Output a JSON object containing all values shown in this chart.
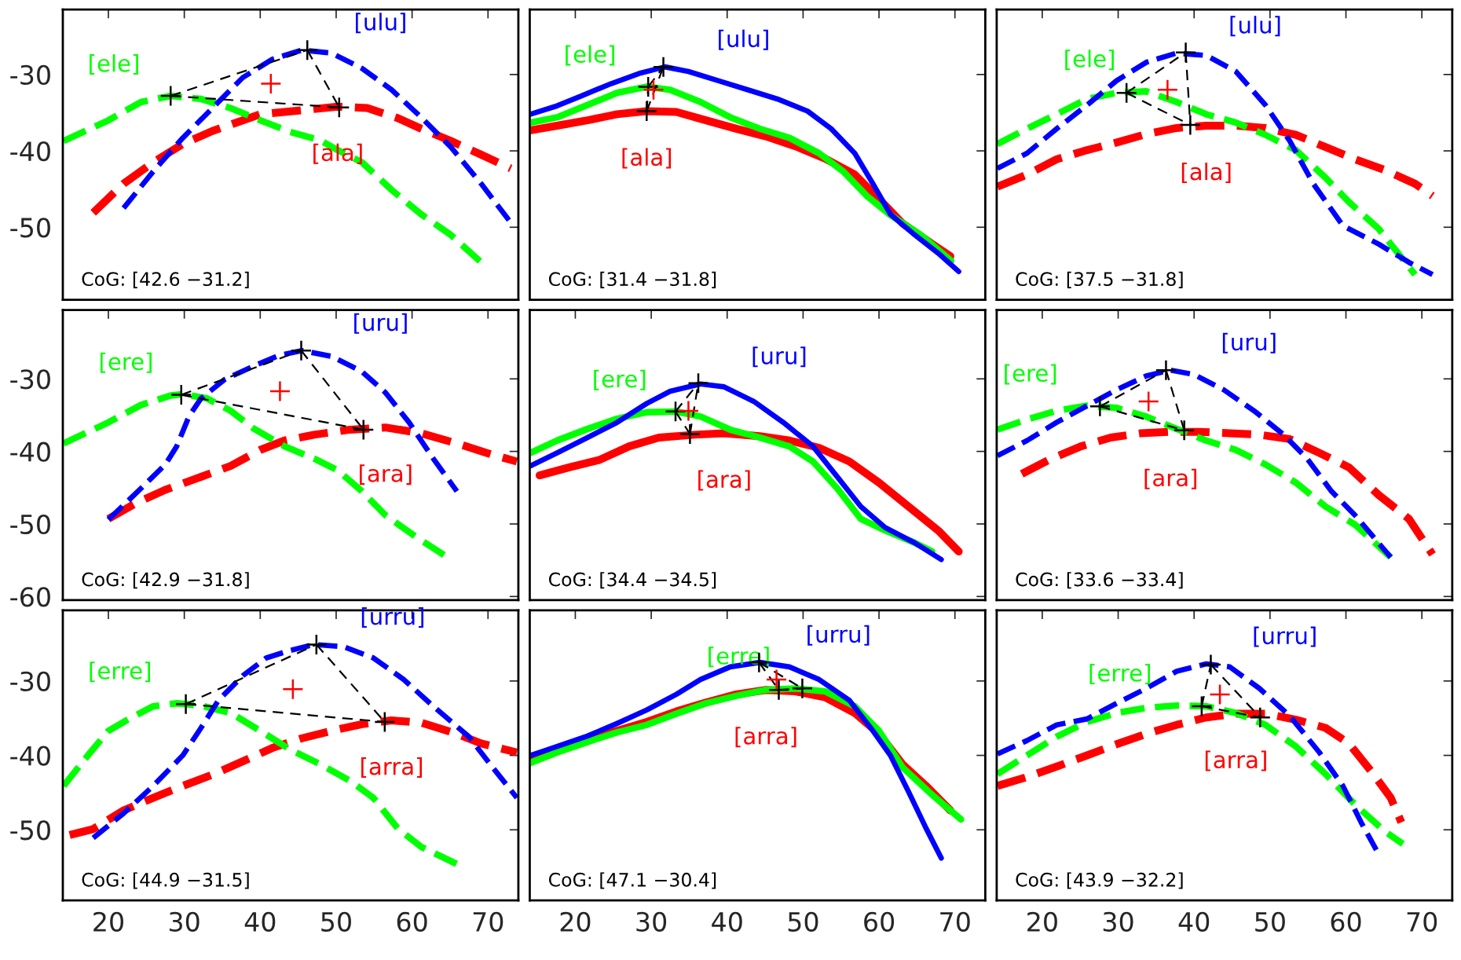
{
  "chart_data": [
    {
      "type": "line",
      "line_style": "dashed",
      "xlim": [
        14,
        74
      ],
      "ylim": [
        -59.5,
        -21.5
      ],
      "xticks": [
        20,
        30,
        40,
        50,
        60,
        70
      ],
      "yticks": [
        -50,
        -40,
        -30
      ],
      "tick_labels": "y",
      "series": [
        {
          "name": "[ala]",
          "color": "#ff0000",
          "x": [
            18,
            22,
            25.9,
            29.8,
            33.7,
            37.7,
            40,
            43.2,
            46.3,
            50.2,
            54.1,
            58.1,
            61.2,
            65.1,
            69.1,
            73
          ],
          "values": [
            -48.1,
            -44.3,
            -41.5,
            -39.1,
            -37.4,
            -36,
            -35.2,
            -34.9,
            -34.6,
            -34.2,
            -34.4,
            -35.7,
            -37.1,
            -38.7,
            -40.5,
            -42.3
          ]
        },
        {
          "name": "[ele]",
          "color": "#00ff00",
          "x": [
            14.1,
            20,
            24.3,
            28.2,
            32.2,
            36.1,
            40,
            43.9,
            47.9,
            50.2,
            53.4,
            57.3,
            61.2,
            65.1,
            69.1
          ],
          "values": [
            -38.7,
            -36,
            -33.6,
            -32.8,
            -33.2,
            -34.4,
            -36,
            -37.5,
            -38.6,
            -39.9,
            -41.5,
            -45.1,
            -48.3,
            -51,
            -54.6
          ]
        },
        {
          "name": "[ulu]",
          "color": "#0000ff",
          "x": [
            22,
            25.9,
            29.8,
            33.7,
            37.7,
            41.6,
            45.5,
            49.4,
            53.4,
            57.3,
            61.2,
            65.1,
            69.1,
            73
          ],
          "values": [
            -47.5,
            -42.7,
            -38.3,
            -34.4,
            -30.4,
            -28,
            -26.8,
            -27.2,
            -29.2,
            -32,
            -35.6,
            -39.5,
            -44.3,
            -49.4
          ]
        },
        {
          "type": "line",
          "color": "#000000",
          "line_style": "dashed",
          "x": [
            28.2,
            46.2
          ],
          "values": [
            -32.8,
            -26.8
          ]
        },
        {
          "type": "line",
          "color": "#000000",
          "line_style": "dashed",
          "x": [
            46.2,
            50.4
          ],
          "values": [
            -26.8,
            -34.3
          ]
        },
        {
          "type": "line",
          "color": "#000000",
          "line_style": "dashed",
          "x": [
            28.2,
            50.4
          ],
          "values": [
            -32.8,
            -34.3
          ]
        },
        {
          "type": "scatter",
          "color": "#000000",
          "marker": "cross",
          "x": [
            28.2,
            46.2,
            50.4
          ],
          "values": [
            -32.8,
            -26.8,
            -34.3
          ]
        },
        {
          "type": "scatter",
          "color": "#ff0000",
          "marker": "cross",
          "x": [
            41.4
          ],
          "values": [
            -31.2
          ]
        }
      ],
      "annotations": [
        "CoG: [42.6 −31.2]"
      ]
    },
    {
      "type": "line",
      "line_style": "solid",
      "xlim": [
        14,
        74
      ],
      "ylim": [
        -59.5,
        -21.5
      ],
      "xticks": [
        20,
        30,
        40,
        50,
        60,
        70
      ],
      "yticks": [
        -50,
        -40,
        -30
      ],
      "tick_labels": false,
      "series": [
        {
          "name": "[ala]",
          "color": "#ff0000",
          "x": [
            14.1,
            17.6,
            21.6,
            25.5,
            29.4,
            33.3,
            37.2,
            41.2,
            45.1,
            49,
            52.9,
            56.8,
            60,
            63.1,
            67,
            69.4
          ],
          "values": [
            -37.3,
            -36.7,
            -36,
            -35.2,
            -34.8,
            -34.9,
            -36,
            -37.1,
            -38.1,
            -39.4,
            -41,
            -43.1,
            -46.3,
            -49.5,
            -52.2,
            -53.8
          ]
        },
        {
          "name": "[ele]",
          "color": "#00ff00",
          "x": [
            14.1,
            17.6,
            21.6,
            25.5,
            29.4,
            32.5,
            36.5,
            40.4,
            44.3,
            48.2,
            52.1,
            55.3,
            58.4,
            61.5,
            65.5,
            69.5
          ],
          "values": [
            -36.3,
            -35.6,
            -34,
            -32.4,
            -31.6,
            -32,
            -33.6,
            -35.6,
            -37.1,
            -38.3,
            -40.3,
            -42.7,
            -45.9,
            -48.4,
            -51,
            -54.4
          ]
        },
        {
          "name": "[ulu]",
          "color": "#0000ff",
          "x": [
            14.1,
            17.6,
            20.8,
            24.7,
            28.6,
            31.8,
            34.9,
            38.8,
            42.7,
            46.6,
            50.6,
            53.7,
            56.8,
            59.2,
            61.5,
            64.7,
            67.8,
            70.5
          ],
          "values": [
            -35.2,
            -34.1,
            -32.8,
            -31.2,
            -29.8,
            -29,
            -29.6,
            -30.8,
            -32,
            -33.2,
            -34.8,
            -37.1,
            -40.3,
            -44.3,
            -48.3,
            -51,
            -53.4,
            -55.8
          ]
        },
        {
          "type": "line",
          "color": "#000000",
          "line_style": "dashed",
          "x": [
            29.6,
            31.6
          ],
          "values": [
            -31.6,
            -29
          ]
        },
        {
          "type": "line",
          "color": "#000000",
          "line_style": "dashed",
          "x": [
            29.4,
            31.6
          ],
          "values": [
            -34.8,
            -29
          ]
        },
        {
          "type": "line",
          "color": "#000000",
          "line_style": "dashed",
          "x": [
            29.4,
            29.6
          ],
          "values": [
            -34.8,
            -31.6
          ]
        },
        {
          "type": "scatter",
          "color": "#000000",
          "marker": "cross",
          "x": [
            29.6,
            31.6,
            29.4
          ],
          "values": [
            -31.6,
            -29,
            -34.8
          ]
        },
        {
          "type": "scatter",
          "color": "#ff0000",
          "marker": "cross",
          "x": [
            30.3
          ],
          "values": [
            -32
          ]
        }
      ],
      "annotations": [
        "CoG: [31.4 −31.8]"
      ]
    },
    {
      "type": "line",
      "line_style": "dashed",
      "xlim": [
        14,
        74
      ],
      "ylim": [
        -59.5,
        -21.5
      ],
      "xticks": [
        20,
        30,
        40,
        50,
        60,
        70
      ],
      "yticks": [
        -50,
        -40,
        -30
      ],
      "tick_labels": false,
      "series": [
        {
          "name": "[ala]",
          "color": "#ff0000",
          "x": [
            14.1,
            18,
            21.9,
            25.9,
            29.8,
            33.7,
            37.7,
            41.6,
            45.5,
            49.4,
            53.4,
            57.3,
            61.2,
            65.1,
            69.1,
            71.4
          ],
          "values": [
            -44.7,
            -43.1,
            -41.1,
            -39.9,
            -38.9,
            -37.8,
            -37,
            -36.7,
            -36.7,
            -37,
            -37.9,
            -39.5,
            -41.1,
            -42.5,
            -44.3,
            -45.9
          ]
        },
        {
          "name": "[ele]",
          "color": "#00ff00",
          "x": [
            14.1,
            18,
            21.9,
            25.9,
            29.8,
            33.7,
            37.7,
            41.6,
            45.5,
            49.4,
            53.4,
            57.3,
            60.4,
            64.3,
            69.1
          ],
          "values": [
            -39.1,
            -37.1,
            -35.2,
            -33.2,
            -32.4,
            -32.2,
            -33.6,
            -35.2,
            -36.3,
            -37.9,
            -39.9,
            -43.5,
            -46.7,
            -50.2,
            -56.2
          ]
        },
        {
          "name": "[ulu]",
          "color": "#0000ff",
          "x": [
            14.1,
            18,
            21.9,
            25.9,
            29.8,
            33.7,
            37.7,
            41.6,
            45.5,
            49.4,
            52.6,
            55.7,
            59.6,
            64.3,
            68.3,
            71.4
          ],
          "values": [
            -42.3,
            -40.3,
            -37.1,
            -34,
            -30.8,
            -28.4,
            -27.2,
            -27.5,
            -29.6,
            -34,
            -38.7,
            -44.3,
            -49.8,
            -52.2,
            -54.6,
            -56.2
          ]
        },
        {
          "type": "line",
          "color": "#000000",
          "line_style": "dashed",
          "x": [
            31.1,
            38.9
          ],
          "values": [
            -32.4,
            -27.1
          ]
        },
        {
          "type": "line",
          "color": "#000000",
          "line_style": "dashed",
          "x": [
            38.9,
            39.5
          ],
          "values": [
            -27.1,
            -36.6
          ]
        },
        {
          "type": "line",
          "color": "#000000",
          "line_style": "dashed",
          "x": [
            31.1,
            39.5
          ],
          "values": [
            -32.4,
            -36.6
          ]
        },
        {
          "type": "scatter",
          "color": "#000000",
          "marker": "cross",
          "x": [
            31.1,
            38.9,
            39.5
          ],
          "values": [
            -32.4,
            -27.1,
            -36.6
          ]
        },
        {
          "type": "scatter",
          "color": "#ff0000",
          "marker": "cross",
          "x": [
            36.5
          ],
          "values": [
            -32
          ]
        }
      ],
      "annotations": [
        "CoG: [37.5 −31.8]"
      ]
    },
    {
      "type": "line",
      "line_style": "dashed",
      "xlim": [
        14,
        74
      ],
      "ylim": [
        -60.5,
        -20.5
      ],
      "xticks": [
        20,
        30,
        40,
        50,
        60,
        70
      ],
      "yticks": [
        -60,
        -50,
        -40,
        -30
      ],
      "tick_labels": "y",
      "series": [
        {
          "name": "[ara]",
          "color": "#ff0000",
          "x": [
            20,
            23.5,
            27.5,
            32.2,
            36.1,
            40,
            43.2,
            47.1,
            51.8,
            56.5,
            61.2,
            65.9,
            69.8,
            73.8
          ],
          "values": [
            -49.3,
            -47.2,
            -45.3,
            -43.5,
            -42,
            -39.8,
            -38.5,
            -37.7,
            -37,
            -36.7,
            -37.5,
            -38.9,
            -40.2,
            -41.4
          ]
        },
        {
          "name": "[ere]",
          "color": "#00ff00",
          "x": [
            14.1,
            20,
            24.3,
            28.2,
            29.8,
            33,
            36.1,
            39.2,
            43.2,
            47.1,
            50.2,
            53.4,
            56.5,
            60.4,
            64.7
          ],
          "values": [
            -38.9,
            -36,
            -33.6,
            -32.3,
            -32.1,
            -32.7,
            -34.4,
            -36.9,
            -39.3,
            -41,
            -42.6,
            -45.5,
            -48.8,
            -51.7,
            -54.6
          ]
        },
        {
          "name": "[uru]",
          "color": "#0000ff",
          "x": [
            20,
            24.3,
            27.5,
            29,
            30.6,
            32.2,
            35.3,
            39.2,
            42.4,
            45.5,
            49.4,
            53.4,
            56.5,
            59.6,
            62.8,
            65.9
          ],
          "values": [
            -49.4,
            -45.1,
            -41.8,
            -39.3,
            -35.2,
            -32.7,
            -30.1,
            -28.2,
            -26.8,
            -26.1,
            -26.9,
            -29,
            -31.9,
            -36,
            -41,
            -45.5
          ]
        },
        {
          "type": "line",
          "color": "#000000",
          "line_style": "dashed",
          "x": [
            29.6,
            45.4
          ],
          "values": [
            -32.2,
            -26.1
          ]
        },
        {
          "type": "line",
          "color": "#000000",
          "line_style": "dashed",
          "x": [
            45.4,
            53.6
          ],
          "values": [
            -26.1,
            -37
          ]
        },
        {
          "type": "line",
          "color": "#000000",
          "line_style": "dashed",
          "x": [
            29.6,
            53.6
          ],
          "values": [
            -32.2,
            -37
          ]
        },
        {
          "type": "scatter",
          "color": "#000000",
          "marker": "cross",
          "x": [
            29.6,
            45.4,
            53.6
          ],
          "values": [
            -32.2,
            -26.1,
            -37
          ]
        },
        {
          "type": "scatter",
          "color": "#ff0000",
          "marker": "cross",
          "x": [
            42.6
          ],
          "values": [
            -31.7
          ]
        }
      ],
      "annotations": [
        "CoG: [42.9 −31.8]"
      ]
    },
    {
      "type": "line",
      "line_style": "solid",
      "xlim": [
        14,
        74
      ],
      "ylim": [
        -60.5,
        -20.5
      ],
      "xticks": [
        20,
        30,
        40,
        50,
        60,
        70
      ],
      "yticks": [
        -60,
        -50,
        -40,
        -30
      ],
      "tick_labels": false,
      "series": [
        {
          "name": "[ara]",
          "color": "#ff0000",
          "x": [
            15.3,
            19.2,
            23.1,
            27.1,
            31,
            35.7,
            39.6,
            44.3,
            48.2,
            52.1,
            56.1,
            60,
            63.9,
            67.8,
            70.5
          ],
          "values": [
            -43.3,
            -42.2,
            -41.2,
            -39.3,
            -38.1,
            -37.7,
            -37.5,
            -37.9,
            -38.5,
            -39.5,
            -41.4,
            -44.3,
            -47.6,
            -50.9,
            -53.8
          ]
        },
        {
          "name": "[ere]",
          "color": "#00ff00",
          "x": [
            14.1,
            17.6,
            21.6,
            25.5,
            29.4,
            33.3,
            36.5,
            40.4,
            44.3,
            48.2,
            51.3,
            54.5,
            57.6,
            60.8,
            64.7,
            67
          ],
          "values": [
            -40.2,
            -38.5,
            -36.9,
            -35.5,
            -34.6,
            -34.5,
            -35.2,
            -37,
            -38.1,
            -39.3,
            -41.4,
            -45.1,
            -49.3,
            -50.9,
            -52.6,
            -53.8
          ]
        },
        {
          "name": "[uru]",
          "color": "#0000ff",
          "x": [
            14.1,
            17.6,
            21.6,
            25.5,
            29.4,
            32.5,
            36.5,
            39.6,
            43.5,
            47.4,
            51.3,
            54.5,
            57.6,
            60.8,
            64.7,
            68.2
          ],
          "values": [
            -42,
            -40.2,
            -38.1,
            -36,
            -33.4,
            -31.7,
            -30.7,
            -31.1,
            -33.1,
            -36,
            -39.3,
            -43.5,
            -47.6,
            -50.5,
            -52.6,
            -54.9
          ]
        },
        {
          "type": "line",
          "color": "#000000",
          "line_style": "dashed",
          "x": [
            33.2,
            36.2
          ],
          "values": [
            -34.5,
            -30.6
          ]
        },
        {
          "type": "line",
          "color": "#000000",
          "line_style": "dashed",
          "x": [
            35.1,
            36.2
          ],
          "values": [
            -37.6,
            -30.6
          ]
        },
        {
          "type": "line",
          "color": "#000000",
          "line_style": "dashed",
          "x": [
            33.2,
            35.1
          ],
          "values": [
            -34.5,
            -37.6
          ]
        },
        {
          "type": "scatter",
          "color": "#000000",
          "marker": "cross",
          "x": [
            33.2,
            36.2,
            35.1
          ],
          "values": [
            -34.5,
            -30.6,
            -37.6
          ]
        },
        {
          "type": "scatter",
          "color": "#ff0000",
          "marker": "cross",
          "x": [
            34.9
          ],
          "values": [
            -34.4
          ]
        }
      ],
      "annotations": [
        "CoG: [34.4 −34.5]"
      ]
    },
    {
      "type": "line",
      "line_style": "dashed",
      "xlim": [
        14,
        74
      ],
      "ylim": [
        -60.5,
        -20.5
      ],
      "xticks": [
        20,
        30,
        40,
        50,
        60,
        70
      ],
      "yticks": [
        -60,
        -50,
        -40,
        -30
      ],
      "tick_labels": false,
      "series": [
        {
          "name": "[ara]",
          "color": "#ff0000",
          "x": [
            17.3,
            21.2,
            25.1,
            29,
            33,
            36.9,
            40.8,
            44.7,
            48.6,
            52.6,
            56.5,
            60.4,
            64.3,
            68.3,
            71.4
          ],
          "values": [
            -43.1,
            -41,
            -39.3,
            -38.1,
            -37.5,
            -37.3,
            -37.3,
            -37.5,
            -37.7,
            -38.3,
            -40.2,
            -42.2,
            -46,
            -49.3,
            -54.2
          ]
        },
        {
          "name": "[ere]",
          "color": "#00ff00",
          "x": [
            14.1,
            18,
            21.9,
            25.9,
            29.8,
            33.7,
            37.7,
            41.6,
            45.5,
            49.4,
            53.4,
            57.3,
            61.2,
            65.9
          ],
          "values": [
            -37,
            -35.6,
            -34.4,
            -33.7,
            -34,
            -35.2,
            -36.9,
            -38.5,
            -39.8,
            -41.8,
            -44.3,
            -47.6,
            -50.1,
            -54.6
          ]
        },
        {
          "name": "[uru]",
          "color": "#0000ff",
          "x": [
            14.1,
            18,
            21.9,
            25.9,
            29.8,
            33.7,
            36.9,
            40,
            43.9,
            47.9,
            51.8,
            54.9,
            58.1,
            61.2,
            65.9
          ],
          "values": [
            -40.6,
            -38.5,
            -36,
            -33.7,
            -31.5,
            -29.6,
            -28.8,
            -29.4,
            -31.5,
            -34.4,
            -37.7,
            -41,
            -45.5,
            -48.8,
            -54.6
          ]
        },
        {
          "type": "line",
          "color": "#000000",
          "line_style": "dashed",
          "x": [
            27.6,
            36.3
          ],
          "values": [
            -33.8,
            -28.8
          ]
        },
        {
          "type": "line",
          "color": "#000000",
          "line_style": "dashed",
          "x": [
            36.3,
            38.7
          ],
          "values": [
            -28.8,
            -37.1
          ]
        },
        {
          "type": "line",
          "color": "#000000",
          "line_style": "dashed",
          "x": [
            27.6,
            38.7
          ],
          "values": [
            -33.8,
            -37.1
          ]
        },
        {
          "type": "scatter",
          "color": "#000000",
          "marker": "cross",
          "x": [
            27.6,
            36.3,
            38.7
          ],
          "values": [
            -33.8,
            -28.8,
            -37.1
          ]
        },
        {
          "type": "scatter",
          "color": "#ff0000",
          "marker": "cross",
          "x": [
            34
          ],
          "values": [
            -33.1
          ]
        }
      ],
      "annotations": [
        "CoG: [33.6 −33.4]"
      ]
    },
    {
      "type": "line",
      "line_style": "dashed",
      "xlim": [
        14,
        74
      ],
      "ylim": [
        -59.5,
        -20.5
      ],
      "xticks": [
        20,
        30,
        40,
        50,
        60,
        70
      ],
      "yticks": [
        -50,
        -40,
        -30
      ],
      "series": [
        {
          "name": "[arra]",
          "color": "#ff0000",
          "x": [
            14.9,
            18,
            22,
            25.9,
            29.8,
            33.7,
            37.7,
            41.6,
            45.5,
            49.4,
            53.4,
            57.3,
            61.2,
            65.9,
            69.1,
            73.8
          ],
          "values": [
            -50.7,
            -49.9,
            -47.4,
            -45.7,
            -44.1,
            -42.6,
            -40.8,
            -39,
            -37.7,
            -36.7,
            -35.8,
            -35.3,
            -35.6,
            -37.1,
            -38.4,
            -39.6
          ]
        },
        {
          "name": "[erre]",
          "color": "#00ff00",
          "x": [
            14.1,
            17.3,
            20,
            22.7,
            25.9,
            29,
            32.2,
            36.1,
            40,
            43.9,
            47.9,
            51.8,
            54.9,
            58.1,
            61.2,
            65.9
          ],
          "values": [
            -44.1,
            -40,
            -36.7,
            -35.1,
            -33.4,
            -33,
            -33.3,
            -34.3,
            -36.7,
            -39.2,
            -41.2,
            -43.4,
            -45.7,
            -49.8,
            -52.3,
            -54.6
          ]
        },
        {
          "name": "[urru]",
          "color": "#0000ff",
          "x": [
            18,
            22,
            25.9,
            29.8,
            32.2,
            34.5,
            37.7,
            40.8,
            43.9,
            47.1,
            51,
            54.9,
            58.9,
            62.8,
            67.5,
            70.6,
            73.8
          ],
          "values": [
            -51.1,
            -47.8,
            -44.1,
            -40,
            -36.3,
            -32.6,
            -29.3,
            -26.9,
            -25.9,
            -25.1,
            -25.4,
            -26.9,
            -29.8,
            -33.4,
            -37.5,
            -41.6,
            -45.7
          ]
        },
        {
          "type": "line",
          "color": "#000000",
          "line_style": "dashed",
          "x": [
            30.2,
            47.4
          ],
          "values": [
            -33.1,
            -25.1
          ]
        },
        {
          "type": "line",
          "color": "#000000",
          "line_style": "dashed",
          "x": [
            47.4,
            56.4
          ],
          "values": [
            -25.1,
            -35.5
          ]
        },
        {
          "type": "line",
          "color": "#000000",
          "line_style": "dashed",
          "x": [
            30.2,
            56.4
          ],
          "values": [
            -33.1,
            -35.5
          ]
        },
        {
          "type": "scatter",
          "color": "#000000",
          "marker": "cross",
          "x": [
            30.2,
            47.4,
            56.4
          ],
          "values": [
            -33.1,
            -25.1,
            -35.5
          ]
        },
        {
          "type": "scatter",
          "color": "#ff0000",
          "marker": "cross",
          "x": [
            44.3
          ],
          "values": [
            -31.1
          ]
        }
      ],
      "annotations": [
        "CoG: [44.9 −31.5]"
      ]
    },
    {
      "type": "line",
      "line_style": "solid",
      "xlim": [
        14,
        74
      ],
      "ylim": [
        -59.5,
        -20.5
      ],
      "xticks": [
        20,
        30,
        40,
        50,
        60,
        70
      ],
      "yticks": [
        -50,
        -40,
        -30
      ],
      "tick_labels": "x",
      "series": [
        {
          "name": "[arra]",
          "color": "#ff0000",
          "x": [
            14.1,
            17.6,
            21.6,
            25.5,
            29.4,
            33.3,
            37.2,
            41.2,
            45.1,
            49,
            52.9,
            56.8,
            60,
            63.1,
            66.2,
            69.4
          ],
          "values": [
            -40.2,
            -39.2,
            -38,
            -36.7,
            -35.5,
            -34.1,
            -32.9,
            -31.8,
            -31.2,
            -31.4,
            -32.2,
            -34.3,
            -37.1,
            -41.2,
            -44.1,
            -47.4
          ]
        },
        {
          "name": "[erre]",
          "color": "#00ff00",
          "x": [
            14.1,
            17.6,
            21.6,
            25.5,
            29.4,
            33.3,
            37.2,
            41.2,
            45.1,
            49,
            52.9,
            56.8,
            60,
            63.1,
            67,
            70.8
          ],
          "values": [
            -41,
            -39.6,
            -38.2,
            -36.9,
            -35.9,
            -34.4,
            -33,
            -32,
            -31.2,
            -31,
            -31.4,
            -33.4,
            -36.7,
            -41.6,
            -45.3,
            -48.6
          ]
        },
        {
          "name": "[urru]",
          "color": "#0000ff",
          "x": [
            14.1,
            17.6,
            21.6,
            25.5,
            29.4,
            33.3,
            36.5,
            40.4,
            44.3,
            48.2,
            52.1,
            56.1,
            59.2,
            61.5,
            63.9,
            66.2,
            68.2
          ],
          "values": [
            -40,
            -38.8,
            -37.4,
            -35.7,
            -33.9,
            -31.8,
            -29.8,
            -28.1,
            -27.5,
            -28.1,
            -29.8,
            -32.6,
            -36.7,
            -40,
            -44.9,
            -49.8,
            -53.8
          ]
        },
        {
          "type": "line",
          "color": "#000000",
          "line_style": "dashed",
          "x": [
            44.2,
            46.8
          ],
          "values": [
            -27.5,
            -31.2
          ]
        },
        {
          "type": "line",
          "color": "#000000",
          "line_style": "dashed",
          "x": [
            46.8,
            49.9
          ],
          "values": [
            -31.2,
            -31
          ]
        },
        {
          "type": "line",
          "color": "#000000",
          "line_style": "dashed",
          "x": [
            44.2,
            49.9
          ],
          "values": [
            -27.5,
            -31
          ]
        },
        {
          "type": "scatter",
          "color": "#000000",
          "marker": "cross",
          "x": [
            44.2,
            46.8,
            49.9
          ],
          "values": [
            -27.5,
            -31.2,
            -31
          ]
        },
        {
          "type": "scatter",
          "color": "#ff0000",
          "marker": "cross",
          "x": [
            46.5
          ],
          "values": [
            -29.8
          ]
        }
      ],
      "annotations": [
        "CoG: [47.1 −30.4]"
      ]
    },
    {
      "type": "line",
      "line_style": "dashed",
      "xlim": [
        14,
        74
      ],
      "ylim": [
        -59.5,
        -20.5
      ],
      "xticks": [
        20,
        30,
        40,
        50,
        60,
        70
      ],
      "yticks": [
        -50,
        -40,
        -30
      ],
      "tick_labels": "x",
      "series": [
        {
          "name": "[arra]",
          "color": "#ff0000",
          "x": [
            14.1,
            18,
            21.9,
            25.9,
            29.8,
            33.7,
            37.7,
            41.6,
            45.5,
            49.4,
            53.4,
            57.3,
            60.4,
            63.6,
            65.9,
            67.3
          ],
          "values": [
            -44.1,
            -42.9,
            -41.5,
            -40,
            -38.5,
            -37.1,
            -35.9,
            -34.9,
            -34.4,
            -34.4,
            -35.2,
            -36.3,
            -38.4,
            -42.5,
            -45.7,
            -49
          ]
        },
        {
          "name": "[erre]",
          "color": "#00ff00",
          "x": [
            14.1,
            18,
            21.9,
            25.9,
            29.8,
            33.7,
            37.7,
            41.6,
            45.5,
            49.4,
            53.4,
            57.3,
            61.2,
            65.1,
            67.5
          ],
          "values": [
            -42.5,
            -40,
            -37.5,
            -35.5,
            -34.3,
            -33.6,
            -33.3,
            -33.4,
            -34.3,
            -35.9,
            -38.8,
            -42.5,
            -46.6,
            -50.2,
            -51.9
          ]
        },
        {
          "name": "[urru]",
          "color": "#0000ff",
          "x": [
            14.1,
            18,
            21.9,
            25.9,
            29.8,
            33.7,
            37.7,
            41.6,
            44.7,
            48.6,
            52.6,
            56.5,
            59.6,
            62,
            64
          ],
          "values": [
            -39.8,
            -38,
            -35.9,
            -35.1,
            -33,
            -31,
            -28.7,
            -27.7,
            -28.1,
            -31,
            -34.7,
            -39.6,
            -44.1,
            -49,
            -52.7
          ]
        },
        {
          "type": "line",
          "color": "#000000",
          "line_style": "dashed",
          "x": [
            41,
            42.2
          ],
          "values": [
            -33.4,
            -27.8
          ]
        },
        {
          "type": "line",
          "color": "#000000",
          "line_style": "dashed",
          "x": [
            42.2,
            48.7
          ],
          "values": [
            -27.8,
            -34.9
          ]
        },
        {
          "type": "line",
          "color": "#000000",
          "line_style": "dashed",
          "x": [
            41,
            48.7
          ],
          "values": [
            -33.4,
            -34.9
          ]
        },
        {
          "type": "scatter",
          "color": "#000000",
          "marker": "cross",
          "x": [
            41,
            42.2,
            48.7
          ],
          "values": [
            -33.4,
            -27.8,
            -34.9
          ]
        },
        {
          "type": "scatter",
          "color": "#ff0000",
          "marker": "cross",
          "x": [
            43.4
          ],
          "values": [
            -31.8
          ]
        }
      ],
      "annotations": [
        "CoG: [43.9 −32.2]"
      ]
    }
  ]
}
